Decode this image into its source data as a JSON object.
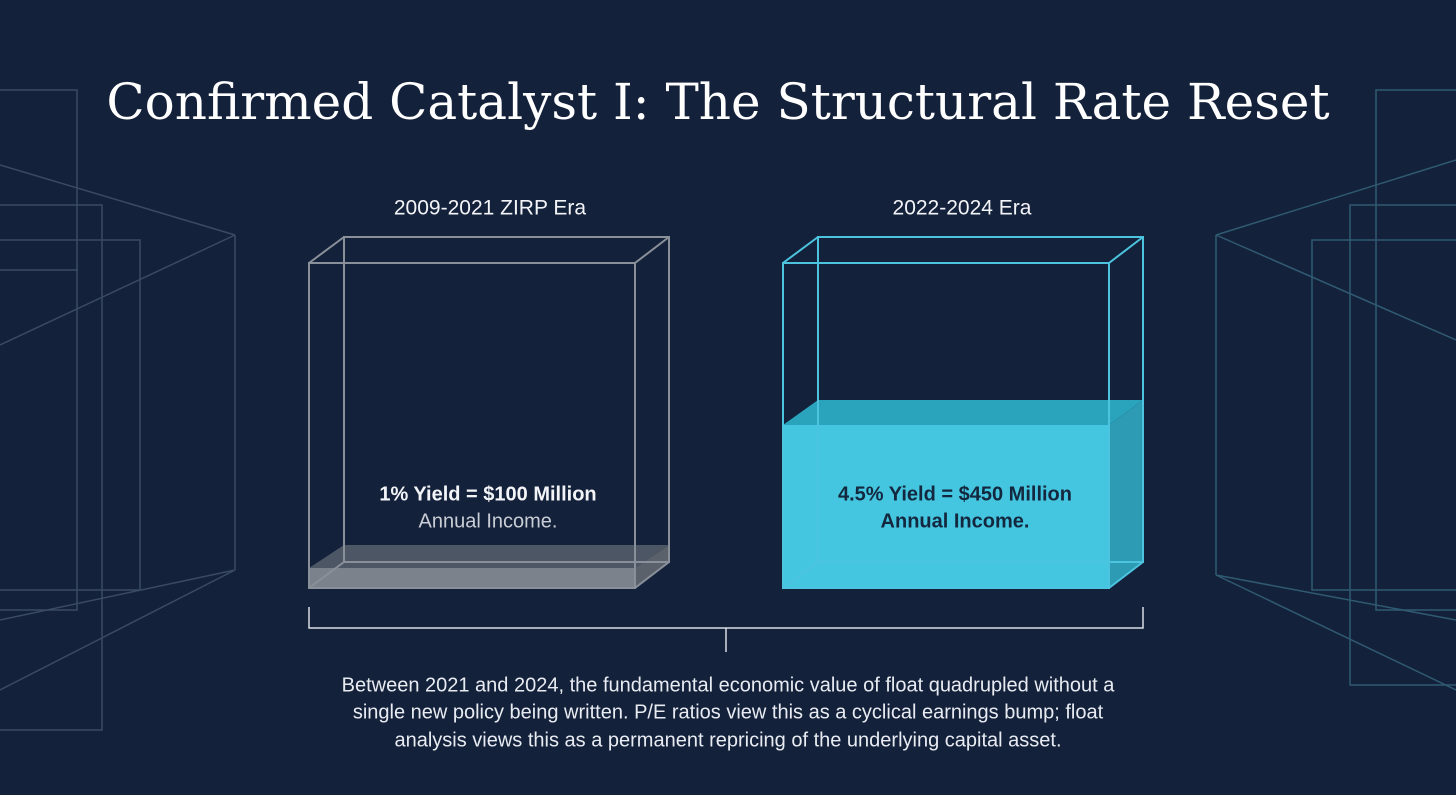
{
  "title": "Confirmed Catalyst I: The Structural Rate Reset",
  "panels": [
    {
      "label": "2009-2021 ZIRP Era",
      "yield_text": "1% Yield = $100 Million",
      "income_text": "Annual Income."
    },
    {
      "label": "2022-2024 Era",
      "yield_text": "4.5% Yield = $450 Million",
      "income_text": "Annual Income."
    }
  ],
  "caption": [
    "Between 2021 and 2024, the fundamental economic value of float quadrupled without a",
    "single new policy being written. P/E ratios view this as a cyclical earnings bump; float",
    "analysis views this as a permanent repricing of the underlying capital asset."
  ]
}
